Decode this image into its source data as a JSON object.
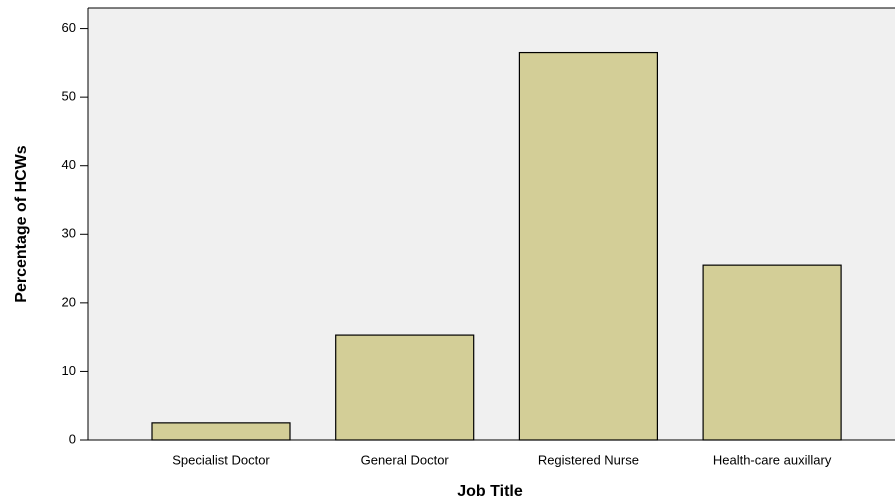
{
  "chart_data": {
    "type": "bar",
    "x_label": "Job Title",
    "y_label": "Percentage of HCWs",
    "categories": [
      "Specialist Doctor",
      "General Doctor",
      "Registered Nurse",
      "Health-care auxillary"
    ],
    "values": [
      2.5,
      15.3,
      56.5,
      25.5
    ],
    "color": "#d3ce97",
    "ylim": [
      0,
      63
    ],
    "yticks": [
      0,
      10,
      20,
      30,
      40,
      50,
      60
    ],
    "grid": false
  }
}
